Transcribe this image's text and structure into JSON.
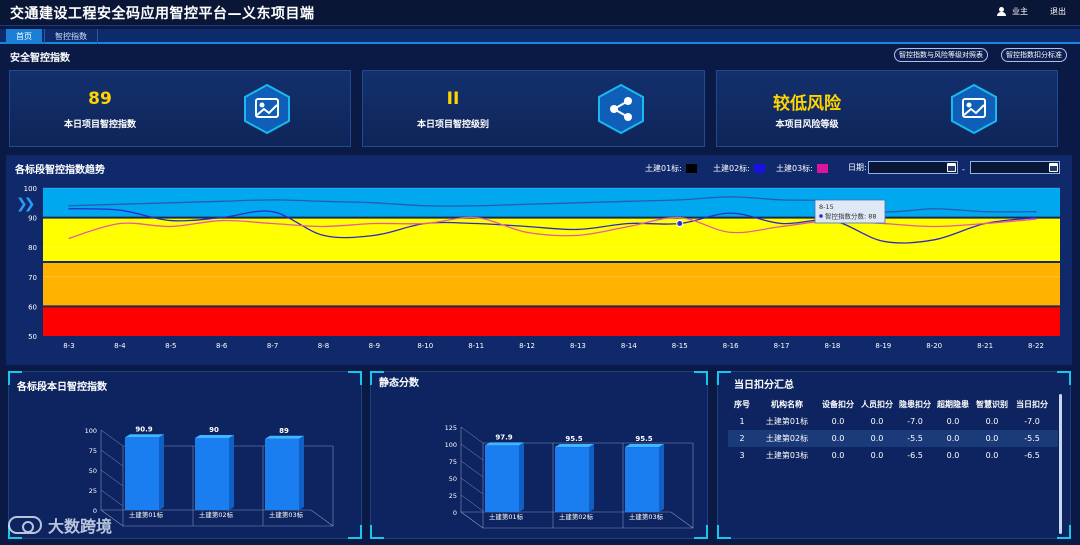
{
  "header": {
    "title": "交通建设工程安全码应用智控平台—义东项目端",
    "user_label": "业主",
    "logout_label": "退出"
  },
  "tabs": [
    {
      "label": "首页",
      "active": true
    },
    {
      "label": "智控指数",
      "active": false
    }
  ],
  "section": {
    "title": "安全智控指数",
    "button1": "智控指数与风险等级对照表",
    "button2": "智控指数扣分标准"
  },
  "kpis": [
    {
      "value": "89",
      "label": "本日项目智控指数",
      "icon": "image-icon"
    },
    {
      "value": "II",
      "label": "本日项目智控级别",
      "icon": "share-icon"
    },
    {
      "value": "较低风险",
      "label": "本项目风险等级",
      "icon": "image-icon"
    }
  ],
  "trend": {
    "title": "各标段智控指数趋势",
    "legend": [
      {
        "name": "土建01标:",
        "color": "#000000"
      },
      {
        "name": "土建02标:",
        "color": "#1a10e0"
      },
      {
        "name": "土建03标:",
        "color": "#e0139c"
      }
    ],
    "date_label": "日期:",
    "tooltip": {
      "date": "8-15",
      "text": "智控指数分数: 88"
    }
  },
  "chart_data": [
    {
      "type": "line",
      "title": "各标段智控指数趋势",
      "x": [
        "8-3",
        "8-4",
        "8-5",
        "8-6",
        "8-7",
        "8-8",
        "8-9",
        "8-10",
        "8-11",
        "8-12",
        "8-13",
        "8-14",
        "8-15",
        "8-16",
        "8-17",
        "8-18",
        "8-19",
        "8-20",
        "8-21",
        "8-22"
      ],
      "ylim": [
        50,
        100
      ],
      "yticks": [
        50,
        60,
        70,
        80,
        90,
        100
      ],
      "bands": [
        {
          "from": 50,
          "to": 60,
          "color": "#ff0000"
        },
        {
          "from": 60,
          "to": 75,
          "color": "#ffb300"
        },
        {
          "from": 75,
          "to": 90,
          "color": "#ffff00"
        },
        {
          "from": 90,
          "to": 100,
          "color": "#00a8f0"
        }
      ],
      "series": [
        {
          "name": "土建01标",
          "color": "#2a5bb0",
          "values": [
            94,
            94.5,
            95,
            95.5,
            96,
            95.5,
            95,
            94,
            94,
            94.5,
            95,
            95.5,
            96,
            97,
            96,
            95.5,
            92,
            93,
            92,
            92
          ]
        },
        {
          "name": "土建02标",
          "color": "#2a2acb",
          "values": [
            93,
            92.5,
            89,
            90,
            92,
            84,
            84,
            88,
            88,
            87,
            86,
            88,
            88,
            91.5,
            88,
            89,
            82,
            82.5,
            88,
            90
          ]
        },
        {
          "name": "土建03标",
          "color": "#e85aa8",
          "values": [
            83,
            88,
            87,
            89,
            88,
            87,
            88,
            88,
            90,
            85,
            84,
            87,
            90,
            85,
            87,
            89,
            88,
            87,
            88,
            89.5
          ]
        }
      ]
    },
    {
      "type": "bar",
      "title": "各标段本日智控指数",
      "categories": [
        "土建第01标",
        "土建第02标",
        "土建第03标"
      ],
      "values": [
        90.9,
        90,
        89
      ],
      "ylim": [
        0,
        100
      ],
      "yticks": [
        0,
        25,
        50,
        75,
        100
      ]
    },
    {
      "type": "bar",
      "title": "静态分数",
      "categories": [
        "土建第01标",
        "土建第02标",
        "土建第03标"
      ],
      "values": [
        97.9,
        95.5,
        95.5
      ],
      "ylim": [
        0,
        125
      ],
      "yticks": [
        0,
        25,
        50,
        75,
        100,
        125
      ]
    }
  ],
  "deduction": {
    "title": "当日扣分汇总",
    "columns": [
      "序号",
      "机构名称",
      "设备扣分",
      "人员扣分",
      "隐患扣分",
      "超期隐患",
      "智慧识别",
      "当日扣分"
    ],
    "rows": [
      [
        "1",
        "土建第01标",
        "0.0",
        "0.0",
        "-7.0",
        "0.0",
        "0.0",
        "-7.0"
      ],
      [
        "2",
        "土建第02标",
        "0.0",
        "0.0",
        "-5.5",
        "0.0",
        "0.0",
        "-5.5"
      ],
      [
        "3",
        "土建第03标",
        "0.0",
        "0.0",
        "-6.5",
        "0.0",
        "0.0",
        "-6.5"
      ]
    ]
  },
  "watermark": "大数跨境"
}
